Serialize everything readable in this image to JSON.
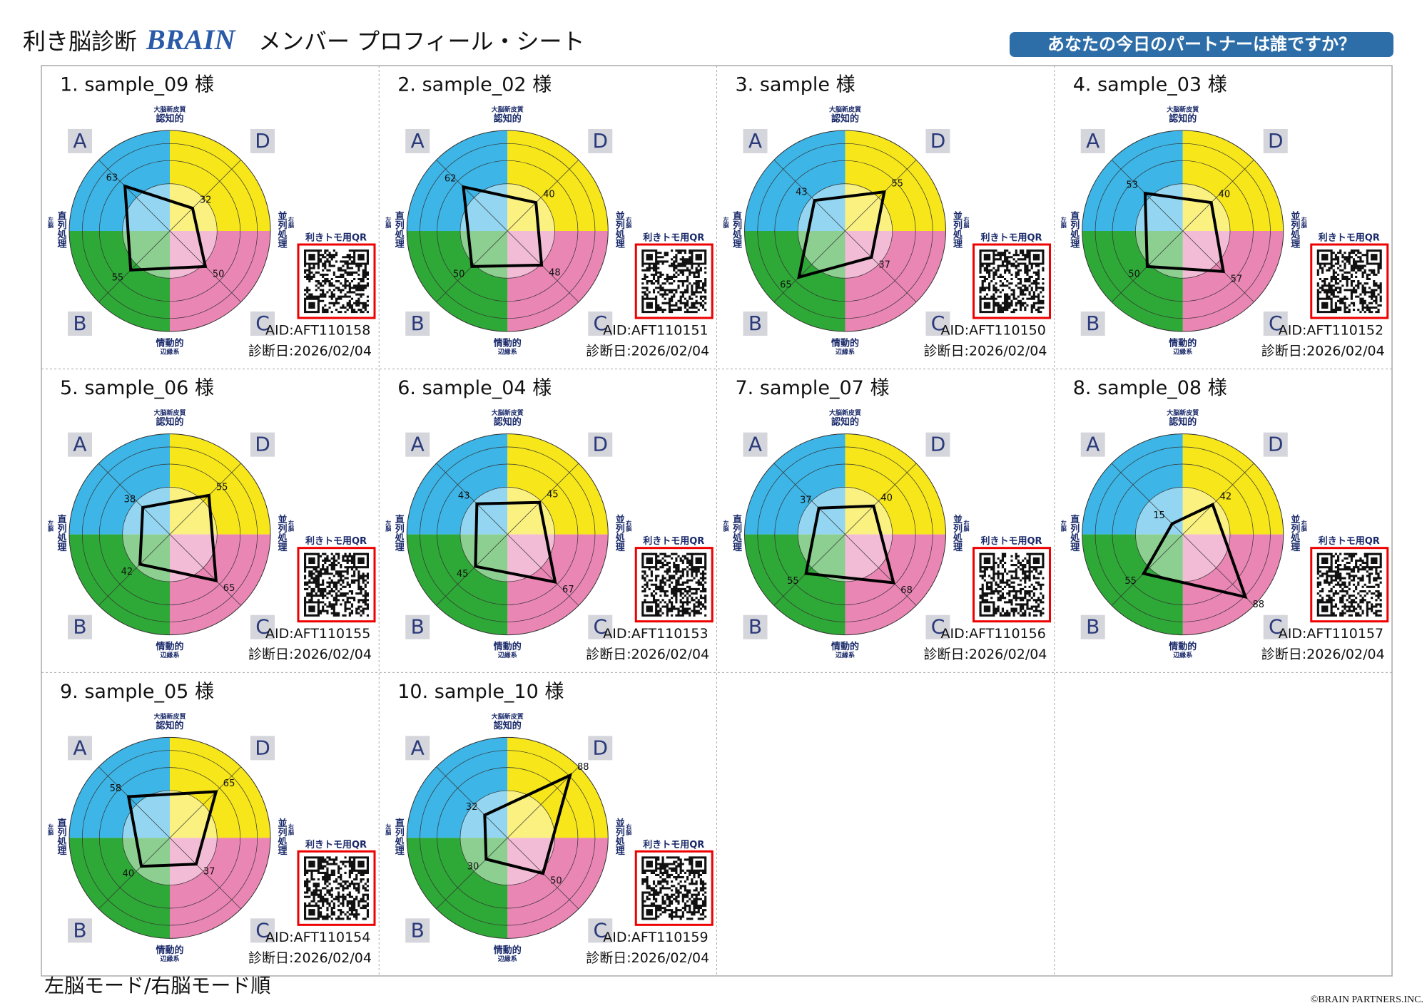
{
  "header": {
    "title": "利き脳診断",
    "logo": "BRAIN",
    "subtitle": "メンバー プロフィール・シート",
    "badge": "あなたの今日のパートナーは誰ですか？"
  },
  "radar_labels": {
    "top_small": "大脳新皮質",
    "top": "認知的",
    "bottom": "情動的",
    "bottom_small": "辺縁系",
    "left": "直列処理",
    "left_small": "左脳",
    "right": "並列処理",
    "right_small": "右脳",
    "qr": "利きトモ用QR",
    "quadrants": {
      "A": "A",
      "B": "B",
      "C": "C",
      "D": "D"
    }
  },
  "rlim": [
    0,
    100
  ],
  "cards": [
    {
      "title": "1. sample_09 様",
      "aid": "AID:AFT110158",
      "date": "診断日:2026/02/04",
      "scores": {
        "A": 63,
        "D": 32,
        "C": 50,
        "B": 55
      }
    },
    {
      "title": "2. sample_02 様",
      "aid": "AID:AFT110151",
      "date": "診断日:2026/02/04",
      "scores": {
        "A": 62,
        "D": 40,
        "C": 48,
        "B": 50
      }
    },
    {
      "title": "3. sample 様",
      "aid": "AID:AFT110150",
      "date": "診断日:2026/02/04",
      "scores": {
        "A": 43,
        "D": 55,
        "C": 37,
        "B": 65
      }
    },
    {
      "title": "4. sample_03 様",
      "aid": "AID:AFT110152",
      "date": "診断日:2026/02/04",
      "scores": {
        "A": 53,
        "D": 40,
        "C": 57,
        "B": 50
      }
    },
    {
      "title": "5. sample_06 様",
      "aid": "AID:AFT110155",
      "date": "診断日:2026/02/04",
      "scores": {
        "A": 38,
        "D": 55,
        "C": 65,
        "B": 42
      }
    },
    {
      "title": "6. sample_04 様",
      "aid": "AID:AFT110153",
      "date": "診断日:2026/02/04",
      "scores": {
        "A": 43,
        "D": 45,
        "C": 67,
        "B": 45
      }
    },
    {
      "title": "7. sample_07 様",
      "aid": "AID:AFT110156",
      "date": "診断日:2026/02/04",
      "scores": {
        "A": 37,
        "D": 40,
        "C": 68,
        "B": 55
      }
    },
    {
      "title": "8. sample_08 様",
      "aid": "AID:AFT110157",
      "date": "診断日:2026/02/04",
      "scores": {
        "A": 15,
        "D": 42,
        "C": 88,
        "B": 55
      }
    },
    {
      "title": "9. sample_05 様",
      "aid": "AID:AFT110154",
      "date": "診断日:2026/02/04",
      "scores": {
        "A": 58,
        "D": 65,
        "C": 37,
        "B": 40
      }
    },
    {
      "title": "10. sample_10 様",
      "aid": "AID:AFT110159",
      "date": "診断日:2026/02/04",
      "scores": {
        "A": 32,
        "D": 88,
        "C": 50,
        "B": 30
      }
    }
  ],
  "footer": {
    "note": "左脳モード/右脳モード順",
    "copyright": "©BRAIN PARTNERS.INC."
  }
}
